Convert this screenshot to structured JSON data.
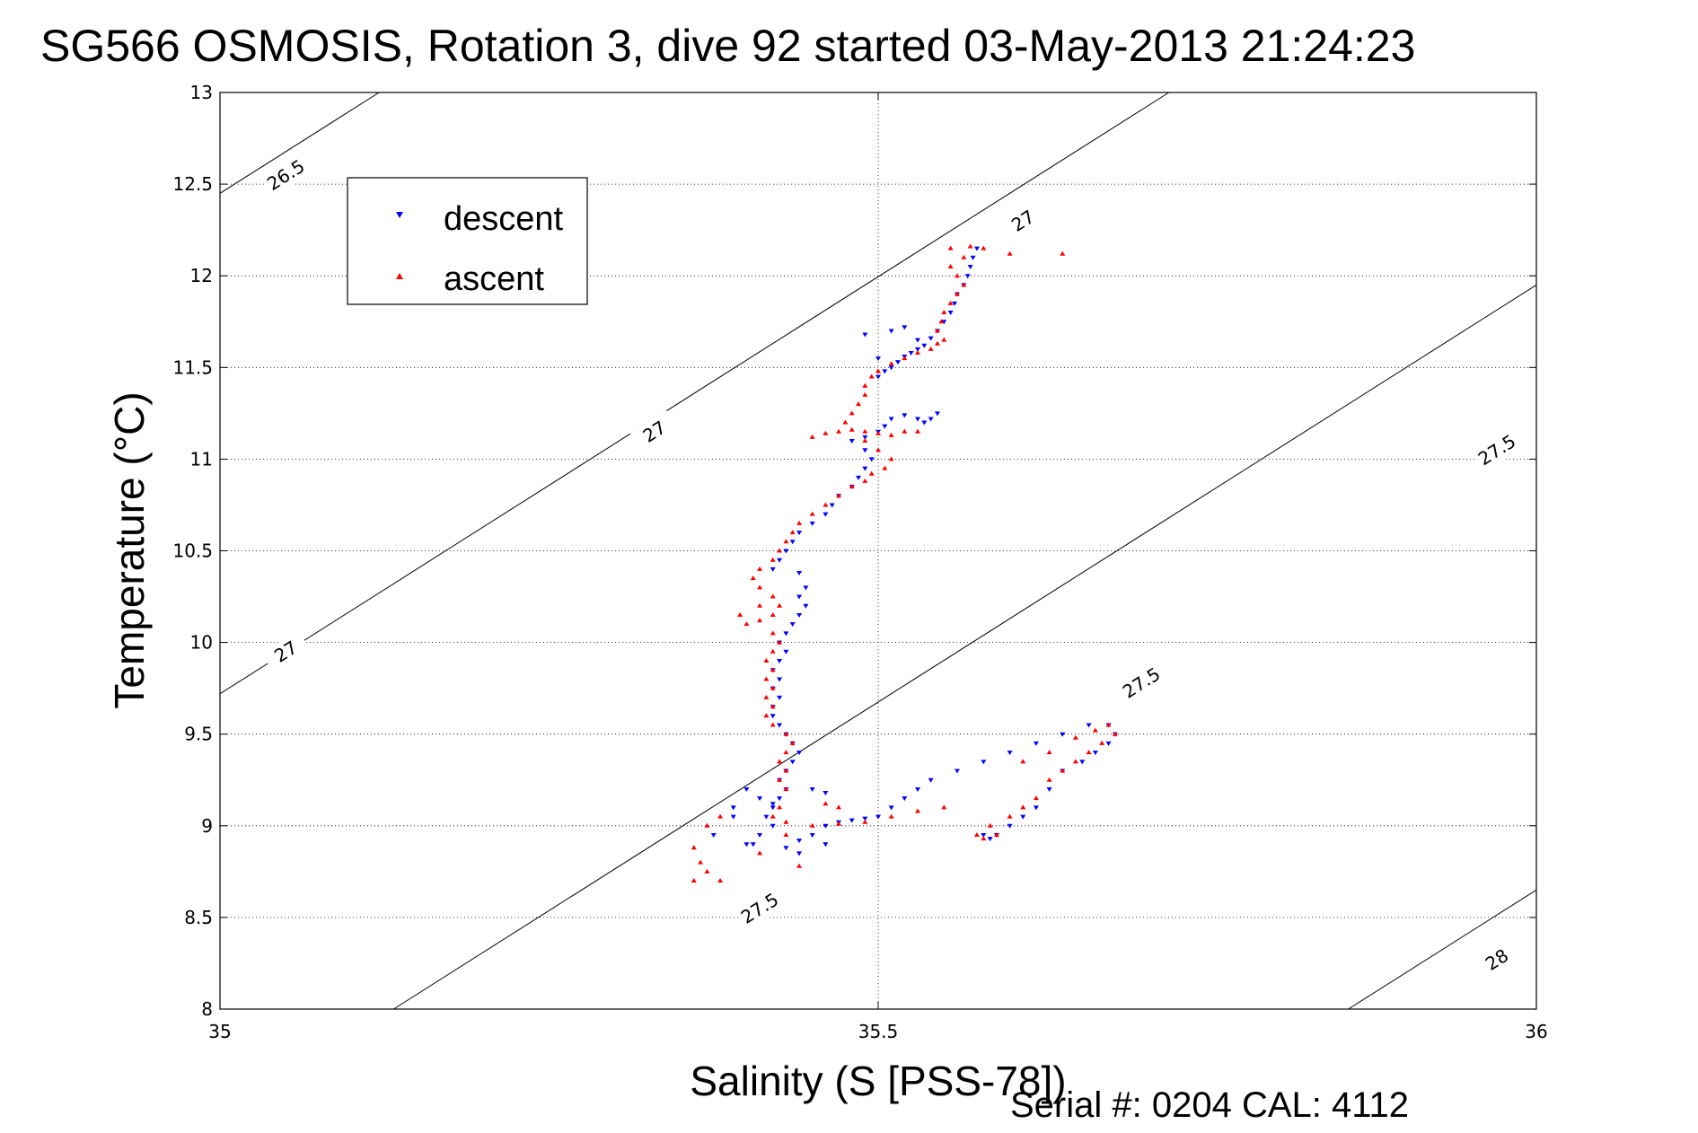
{
  "chart_data": {
    "type": "scatter",
    "title": "SG566 OSMOSIS, Rotation 3, dive 92 started 03-May-2013 21:24:23",
    "xlabel": "Salinity (S [PSS-78])",
    "ylabel": "Temperature (°C)",
    "xlim": [
      35,
      36
    ],
    "ylim": [
      8,
      13
    ],
    "x_ticks": [
      "35",
      "35.5",
      "36"
    ],
    "y_ticks": [
      "8",
      "8.5",
      "9",
      "9.5",
      "10",
      "10.5",
      "11",
      "11.5",
      "12",
      "12.5",
      "13"
    ],
    "grid": true,
    "legend_position": "top-left",
    "footer": "Serial #: 0204  CAL: 4112",
    "contours": [
      {
        "label": "26.5",
        "label_positions": [
          [
            35.05,
            12.55
          ]
        ]
      },
      {
        "label": "27",
        "label_positions": [
          [
            35.05,
            9.95
          ],
          [
            35.33,
            11.15
          ],
          [
            35.61,
            12.3
          ]
        ]
      },
      {
        "label": "27.5",
        "label_positions": [
          [
            35.41,
            8.55
          ],
          [
            35.7,
            9.78
          ],
          [
            35.97,
            11.05
          ]
        ]
      },
      {
        "label": "28",
        "label_positions": [
          [
            35.97,
            8.27
          ]
        ]
      }
    ],
    "series": [
      {
        "name": "descent",
        "color": "#0000ff",
        "marker": "triangle-down",
        "points": [
          [
            35.575,
            12.15
          ],
          [
            35.572,
            12.1
          ],
          [
            35.57,
            12.05
          ],
          [
            35.568,
            12.0
          ],
          [
            35.565,
            11.95
          ],
          [
            35.56,
            11.9
          ],
          [
            35.558,
            11.85
          ],
          [
            35.555,
            11.8
          ],
          [
            35.55,
            11.75
          ],
          [
            35.545,
            11.7
          ],
          [
            35.54,
            11.66
          ],
          [
            35.535,
            11.62
          ],
          [
            35.53,
            11.6
          ],
          [
            35.525,
            11.58
          ],
          [
            35.52,
            11.56
          ],
          [
            35.515,
            11.53
          ],
          [
            35.51,
            11.5
          ],
          [
            35.505,
            11.48
          ],
          [
            35.5,
            11.45
          ],
          [
            35.53,
            11.65
          ],
          [
            35.51,
            11.7
          ],
          [
            35.49,
            11.68
          ],
          [
            35.52,
            11.72
          ],
          [
            35.5,
            11.55
          ],
          [
            35.545,
            11.25
          ],
          [
            35.54,
            11.22
          ],
          [
            35.535,
            11.2
          ],
          [
            35.53,
            11.22
          ],
          [
            35.52,
            11.24
          ],
          [
            35.51,
            11.22
          ],
          [
            35.505,
            11.18
          ],
          [
            35.5,
            11.15
          ],
          [
            35.49,
            11.12
          ],
          [
            35.48,
            11.1
          ],
          [
            35.49,
            11.05
          ],
          [
            35.495,
            11.0
          ],
          [
            35.49,
            10.95
          ],
          [
            35.485,
            10.9
          ],
          [
            35.48,
            10.85
          ],
          [
            35.47,
            10.8
          ],
          [
            35.465,
            10.75
          ],
          [
            35.46,
            10.7
          ],
          [
            35.45,
            10.65
          ],
          [
            35.44,
            10.6
          ],
          [
            35.435,
            10.55
          ],
          [
            35.43,
            10.5
          ],
          [
            35.425,
            10.45
          ],
          [
            35.42,
            10.4
          ],
          [
            35.44,
            10.38
          ],
          [
            35.445,
            10.3
          ],
          [
            35.44,
            10.25
          ],
          [
            35.445,
            10.2
          ],
          [
            35.44,
            10.15
          ],
          [
            35.435,
            10.1
          ],
          [
            35.43,
            10.05
          ],
          [
            35.425,
            10.0
          ],
          [
            35.43,
            9.95
          ],
          [
            35.425,
            9.9
          ],
          [
            35.42,
            9.85
          ],
          [
            35.425,
            9.8
          ],
          [
            35.42,
            9.75
          ],
          [
            35.425,
            9.7
          ],
          [
            35.42,
            9.65
          ],
          [
            35.42,
            9.6
          ],
          [
            35.425,
            9.55
          ],
          [
            35.43,
            9.5
          ],
          [
            35.435,
            9.45
          ],
          [
            35.44,
            9.4
          ],
          [
            35.435,
            9.35
          ],
          [
            35.43,
            9.3
          ],
          [
            35.425,
            9.25
          ],
          [
            35.43,
            9.2
          ],
          [
            35.425,
            9.15
          ],
          [
            35.42,
            9.1
          ],
          [
            35.415,
            9.05
          ],
          [
            35.42,
            9.0
          ],
          [
            35.41,
            8.95
          ],
          [
            35.405,
            8.9
          ],
          [
            35.4,
            8.9
          ],
          [
            35.43,
            8.88
          ],
          [
            35.44,
            8.92
          ],
          [
            35.45,
            8.95
          ],
          [
            35.46,
            9.0
          ],
          [
            35.47,
            9.02
          ],
          [
            35.48,
            9.03
          ],
          [
            35.49,
            9.04
          ],
          [
            35.5,
            9.05
          ],
          [
            35.51,
            9.1
          ],
          [
            35.52,
            9.15
          ],
          [
            35.53,
            9.2
          ],
          [
            35.54,
            9.25
          ],
          [
            35.56,
            9.3
          ],
          [
            35.58,
            9.35
          ],
          [
            35.6,
            9.4
          ],
          [
            35.62,
            9.45
          ],
          [
            35.64,
            9.5
          ],
          [
            35.66,
            9.55
          ],
          [
            35.675,
            9.55
          ],
          [
            35.68,
            9.5
          ],
          [
            35.675,
            9.45
          ],
          [
            35.665,
            9.4
          ],
          [
            35.655,
            9.35
          ],
          [
            35.64,
            9.3
          ],
          [
            35.63,
            9.2
          ],
          [
            35.62,
            9.1
          ],
          [
            35.61,
            9.05
          ],
          [
            35.6,
            9.0
          ],
          [
            35.59,
            8.95
          ],
          [
            35.585,
            8.93
          ],
          [
            35.58,
            8.95
          ],
          [
            35.41,
            9.15
          ],
          [
            35.39,
            9.05
          ],
          [
            35.375,
            8.95
          ],
          [
            35.46,
            8.9
          ],
          [
            35.44,
            8.85
          ],
          [
            35.45,
            9.2
          ],
          [
            35.46,
            9.18
          ],
          [
            35.4,
            9.2
          ],
          [
            35.39,
            9.1
          ],
          [
            35.42,
            9.12
          ]
        ]
      },
      {
        "name": "ascent",
        "color": "#ff0000",
        "marker": "triangle-up",
        "points": [
          [
            35.555,
            12.15
          ],
          [
            35.57,
            12.16
          ],
          [
            35.58,
            12.15
          ],
          [
            35.6,
            12.12
          ],
          [
            35.565,
            12.1
          ],
          [
            35.555,
            12.05
          ],
          [
            35.56,
            12.0
          ],
          [
            35.565,
            11.95
          ],
          [
            35.56,
            11.9
          ],
          [
            35.555,
            11.85
          ],
          [
            35.55,
            11.8
          ],
          [
            35.548,
            11.75
          ],
          [
            35.545,
            11.7
          ],
          [
            35.55,
            11.65
          ],
          [
            35.545,
            11.63
          ],
          [
            35.54,
            11.6
          ],
          [
            35.53,
            11.58
          ],
          [
            35.52,
            11.55
          ],
          [
            35.51,
            11.52
          ],
          [
            35.5,
            11.48
          ],
          [
            35.495,
            11.45
          ],
          [
            35.49,
            11.4
          ],
          [
            35.49,
            11.35
          ],
          [
            35.485,
            11.3
          ],
          [
            35.48,
            11.25
          ],
          [
            35.475,
            11.2
          ],
          [
            35.48,
            11.16
          ],
          [
            35.49,
            11.15
          ],
          [
            35.5,
            11.14
          ],
          [
            35.51,
            11.13
          ],
          [
            35.52,
            11.15
          ],
          [
            35.53,
            11.15
          ],
          [
            35.47,
            11.15
          ],
          [
            35.46,
            11.14
          ],
          [
            35.45,
            11.12
          ],
          [
            35.49,
            11.1
          ],
          [
            35.5,
            11.05
          ],
          [
            35.51,
            11.0
          ],
          [
            35.505,
            10.95
          ],
          [
            35.495,
            10.92
          ],
          [
            35.49,
            10.88
          ],
          [
            35.48,
            10.85
          ],
          [
            35.47,
            10.8
          ],
          [
            35.46,
            10.75
          ],
          [
            35.45,
            10.7
          ],
          [
            35.44,
            10.65
          ],
          [
            35.435,
            10.6
          ],
          [
            35.43,
            10.55
          ],
          [
            35.425,
            10.5
          ],
          [
            35.42,
            10.45
          ],
          [
            35.41,
            10.4
          ],
          [
            35.405,
            10.35
          ],
          [
            35.41,
            10.3
          ],
          [
            35.42,
            10.25
          ],
          [
            35.425,
            10.2
          ],
          [
            35.42,
            10.15
          ],
          [
            35.41,
            10.12
          ],
          [
            35.4,
            10.1
          ],
          [
            35.395,
            10.15
          ],
          [
            35.41,
            10.2
          ],
          [
            35.42,
            10.05
          ],
          [
            35.425,
            10.0
          ],
          [
            35.42,
            9.95
          ],
          [
            35.415,
            9.9
          ],
          [
            35.42,
            9.85
          ],
          [
            35.415,
            9.8
          ],
          [
            35.42,
            9.75
          ],
          [
            35.415,
            9.7
          ],
          [
            35.42,
            9.65
          ],
          [
            35.415,
            9.6
          ],
          [
            35.42,
            9.55
          ],
          [
            35.43,
            9.5
          ],
          [
            35.435,
            9.45
          ],
          [
            35.43,
            9.4
          ],
          [
            35.425,
            9.35
          ],
          [
            35.43,
            9.3
          ],
          [
            35.425,
            9.25
          ],
          [
            35.43,
            9.2
          ],
          [
            35.425,
            9.1
          ],
          [
            35.42,
            9.05
          ],
          [
            35.43,
            9.02
          ],
          [
            35.45,
            9.0
          ],
          [
            35.47,
            9.01
          ],
          [
            35.49,
            9.02
          ],
          [
            35.51,
            9.05
          ],
          [
            35.53,
            9.08
          ],
          [
            35.55,
            9.1
          ],
          [
            35.575,
            8.95
          ],
          [
            35.58,
            8.93
          ],
          [
            35.59,
            8.95
          ],
          [
            35.6,
            9.05
          ],
          [
            35.61,
            9.1
          ],
          [
            35.62,
            9.15
          ],
          [
            35.63,
            9.25
          ],
          [
            35.64,
            9.3
          ],
          [
            35.65,
            9.35
          ],
          [
            35.66,
            9.4
          ],
          [
            35.67,
            9.45
          ],
          [
            35.68,
            9.5
          ],
          [
            35.675,
            9.55
          ],
          [
            35.665,
            9.52
          ],
          [
            35.65,
            9.48
          ],
          [
            35.63,
            9.4
          ],
          [
            35.61,
            9.35
          ],
          [
            35.36,
            8.88
          ],
          [
            35.365,
            8.8
          ],
          [
            35.37,
            8.75
          ],
          [
            35.36,
            8.7
          ],
          [
            35.38,
            8.7
          ],
          [
            35.37,
            9.0
          ],
          [
            35.38,
            9.05
          ],
          [
            35.43,
            8.95
          ],
          [
            35.44,
            8.78
          ],
          [
            35.46,
            9.12
          ],
          [
            35.47,
            9.1
          ],
          [
            35.41,
            8.85
          ],
          [
            35.64,
            12.12
          ],
          [
            35.585,
            9.0
          ]
        ]
      }
    ]
  }
}
